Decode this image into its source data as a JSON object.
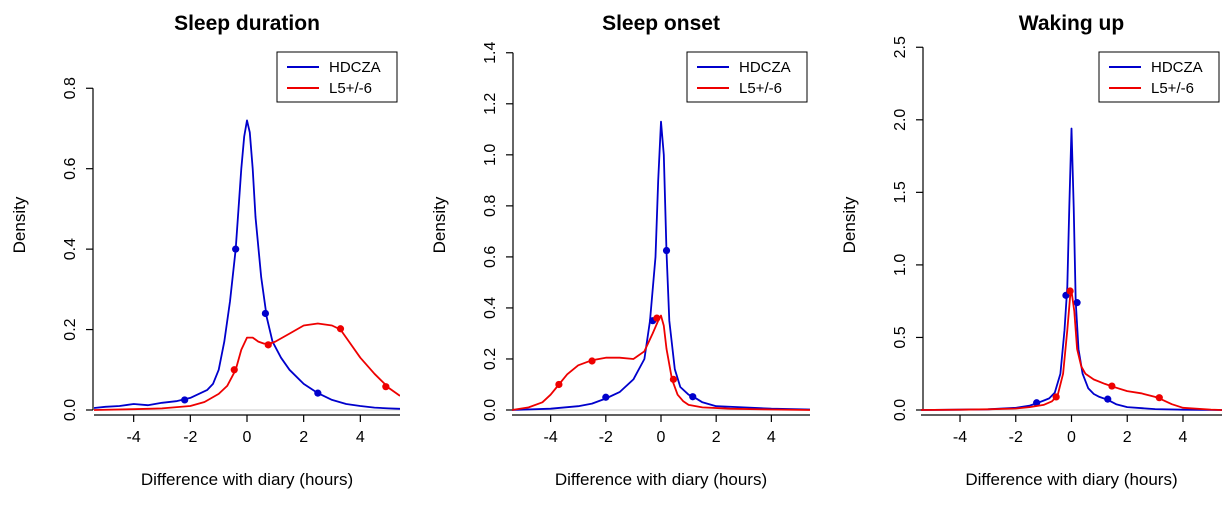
{
  "chart_data": [
    {
      "type": "line",
      "title": "Sleep duration",
      "xlabel": "Difference with diary (hours)",
      "ylabel": "Density",
      "xlim": [
        -5.4,
        5.4
      ],
      "ylim": [
        0,
        0.92
      ],
      "x_ticks": [
        -4,
        -2,
        0,
        2,
        4
      ],
      "y_ticks": [
        0.0,
        0.2,
        0.4,
        0.6,
        0.8
      ],
      "y_tick_labels": [
        "0.0",
        "0.2",
        "0.4",
        "0.6",
        "0.8"
      ],
      "legend_position": "top-right",
      "legend": [
        "HDCZA",
        "L5+/-6"
      ],
      "series": [
        {
          "name": "HDCZA",
          "color": "#0000cc",
          "x": [
            -5.4,
            -5.0,
            -4.5,
            -4.0,
            -3.5,
            -3.0,
            -2.5,
            -2.0,
            -1.7,
            -1.4,
            -1.2,
            -1.0,
            -0.8,
            -0.6,
            -0.4,
            -0.3,
            -0.2,
            -0.1,
            0.0,
            0.1,
            0.2,
            0.3,
            0.5,
            0.7,
            0.9,
            1.2,
            1.5,
            2.0,
            2.5,
            3.0,
            3.5,
            4.0,
            4.5,
            5.0,
            5.4
          ],
          "y": [
            0.005,
            0.008,
            0.01,
            0.015,
            0.012,
            0.018,
            0.022,
            0.03,
            0.04,
            0.05,
            0.065,
            0.1,
            0.17,
            0.27,
            0.4,
            0.5,
            0.6,
            0.68,
            0.72,
            0.69,
            0.6,
            0.48,
            0.33,
            0.23,
            0.17,
            0.13,
            0.1,
            0.065,
            0.042,
            0.025,
            0.015,
            0.01,
            0.006,
            0.004,
            0.003
          ],
          "markers": [
            [
              -2.2,
              0.025
            ],
            [
              -0.4,
              0.4
            ],
            [
              0.65,
              0.24
            ],
            [
              2.5,
              0.042
            ]
          ]
        },
        {
          "name": "L5+/-6",
          "color": "#ee0000",
          "x": [
            -5.4,
            -4.0,
            -3.0,
            -2.0,
            -1.5,
            -1.0,
            -0.7,
            -0.4,
            -0.2,
            0.0,
            0.2,
            0.4,
            0.6,
            0.8,
            1.0,
            1.5,
            2.0,
            2.5,
            3.0,
            3.3,
            3.6,
            4.0,
            4.5,
            5.0,
            5.4
          ],
          "y": [
            0.0,
            0.002,
            0.004,
            0.01,
            0.02,
            0.04,
            0.06,
            0.1,
            0.15,
            0.18,
            0.18,
            0.17,
            0.165,
            0.165,
            0.17,
            0.19,
            0.21,
            0.215,
            0.21,
            0.2,
            0.17,
            0.13,
            0.09,
            0.055,
            0.035
          ],
          "markers": [
            [
              -0.45,
              0.1
            ],
            [
              0.75,
              0.162
            ],
            [
              3.3,
              0.202
            ],
            [
              4.9,
              0.058
            ]
          ]
        }
      ]
    },
    {
      "type": "line",
      "title": "Sleep onset",
      "xlabel": "Difference with diary (hours)",
      "ylabel": "Density",
      "xlim": [
        -5.4,
        5.4
      ],
      "ylim": [
        0,
        1.45
      ],
      "x_ticks": [
        -4,
        -2,
        0,
        2,
        4
      ],
      "y_ticks": [
        0.0,
        0.2,
        0.4,
        0.6,
        0.8,
        1.0,
        1.2,
        1.4
      ],
      "y_tick_labels": [
        "0.0",
        "0.2",
        "0.4",
        "0.6",
        "0.8",
        "1.0",
        "1.2",
        "1.4"
      ],
      "legend_position": "top-right",
      "legend": [
        "HDCZA",
        "L5+/-6"
      ],
      "series": [
        {
          "name": "HDCZA",
          "color": "#0000cc",
          "x": [
            -5.4,
            -4.0,
            -3.0,
            -2.5,
            -2.0,
            -1.5,
            -1.0,
            -0.6,
            -0.4,
            -0.2,
            -0.1,
            0.0,
            0.1,
            0.2,
            0.3,
            0.5,
            0.7,
            1.0,
            1.2,
            1.5,
            2.0,
            3.0,
            4.0,
            5.4
          ],
          "y": [
            0.0,
            0.005,
            0.015,
            0.025,
            0.045,
            0.07,
            0.12,
            0.2,
            0.35,
            0.6,
            0.9,
            1.13,
            1.0,
            0.62,
            0.35,
            0.16,
            0.09,
            0.06,
            0.05,
            0.03,
            0.015,
            0.01,
            0.005,
            0.002
          ],
          "markers": [
            [
              -2.0,
              0.05
            ],
            [
              -0.3,
              0.35
            ],
            [
              0.2,
              0.625
            ],
            [
              1.15,
              0.052
            ]
          ]
        },
        {
          "name": "L5+/-6",
          "color": "#ee0000",
          "x": [
            -5.4,
            -4.8,
            -4.3,
            -4.0,
            -3.7,
            -3.4,
            -3.0,
            -2.5,
            -2.0,
            -1.5,
            -1.0,
            -0.6,
            -0.3,
            -0.1,
            0.0,
            0.1,
            0.2,
            0.4,
            0.6,
            0.8,
            1.0,
            1.5,
            2.5,
            4.0,
            5.4
          ],
          "y": [
            0.0,
            0.01,
            0.03,
            0.06,
            0.1,
            0.14,
            0.175,
            0.195,
            0.205,
            0.205,
            0.2,
            0.23,
            0.3,
            0.35,
            0.37,
            0.33,
            0.24,
            0.12,
            0.06,
            0.035,
            0.02,
            0.01,
            0.005,
            0.002,
            0.0
          ],
          "markers": [
            [
              -3.7,
              0.1
            ],
            [
              -2.5,
              0.192
            ],
            [
              -0.15,
              0.36
            ],
            [
              0.45,
              0.12
            ]
          ]
        }
      ]
    },
    {
      "type": "line",
      "title": "Waking up",
      "xlabel": "Difference with diary (hours)",
      "ylabel": "Density",
      "xlim": [
        -5.4,
        5.4
      ],
      "ylim": [
        0,
        2.55
      ],
      "x_ticks": [
        -4,
        -2,
        0,
        2,
        4
      ],
      "y_ticks": [
        0.0,
        0.5,
        1.0,
        1.5,
        2.0,
        2.5
      ],
      "y_tick_labels": [
        "0.0",
        "0.5",
        "1.0",
        "1.5",
        "2.0",
        "2.5"
      ],
      "legend_position": "top-right",
      "legend": [
        "HDCZA",
        "L5+/-6"
      ],
      "series": [
        {
          "name": "HDCZA",
          "color": "#0000cc",
          "x": [
            -5.4,
            -4.0,
            -3.0,
            -2.0,
            -1.5,
            -1.2,
            -1.0,
            -0.8,
            -0.6,
            -0.4,
            -0.25,
            -0.15,
            -0.08,
            0.0,
            0.08,
            0.15,
            0.25,
            0.4,
            0.6,
            0.8,
            1.0,
            1.3,
            1.6,
            2.0,
            3.0,
            4.0,
            5.4
          ],
          "y": [
            0.0,
            0.002,
            0.005,
            0.015,
            0.03,
            0.05,
            0.065,
            0.08,
            0.12,
            0.25,
            0.55,
            0.85,
            1.4,
            1.94,
            1.4,
            0.75,
            0.42,
            0.25,
            0.15,
            0.11,
            0.09,
            0.07,
            0.04,
            0.02,
            0.006,
            0.002,
            0.0
          ],
          "markers": [
            [
              -1.25,
              0.05
            ],
            [
              -0.2,
              0.79
            ],
            [
              0.2,
              0.74
            ],
            [
              1.3,
              0.075
            ]
          ]
        },
        {
          "name": "L5+/-6",
          "color": "#ee0000",
          "x": [
            -5.4,
            -4.0,
            -3.0,
            -2.0,
            -1.5,
            -1.0,
            -0.7,
            -0.5,
            -0.3,
            -0.15,
            -0.05,
            0.0,
            0.1,
            0.2,
            0.35,
            0.5,
            0.8,
            1.2,
            1.5,
            2.0,
            2.5,
            3.0,
            3.2,
            3.6,
            4.0,
            5.0,
            5.4
          ],
          "y": [
            0.0,
            0.002,
            0.005,
            0.01,
            0.02,
            0.035,
            0.06,
            0.1,
            0.25,
            0.55,
            0.78,
            0.82,
            0.68,
            0.42,
            0.3,
            0.25,
            0.21,
            0.18,
            0.16,
            0.13,
            0.115,
            0.09,
            0.075,
            0.04,
            0.015,
            0.003,
            0.0
          ],
          "markers": [
            [
              -0.55,
              0.09
            ],
            [
              -0.05,
              0.82
            ],
            [
              1.45,
              0.165
            ],
            [
              3.15,
              0.085
            ]
          ]
        }
      ]
    }
  ]
}
